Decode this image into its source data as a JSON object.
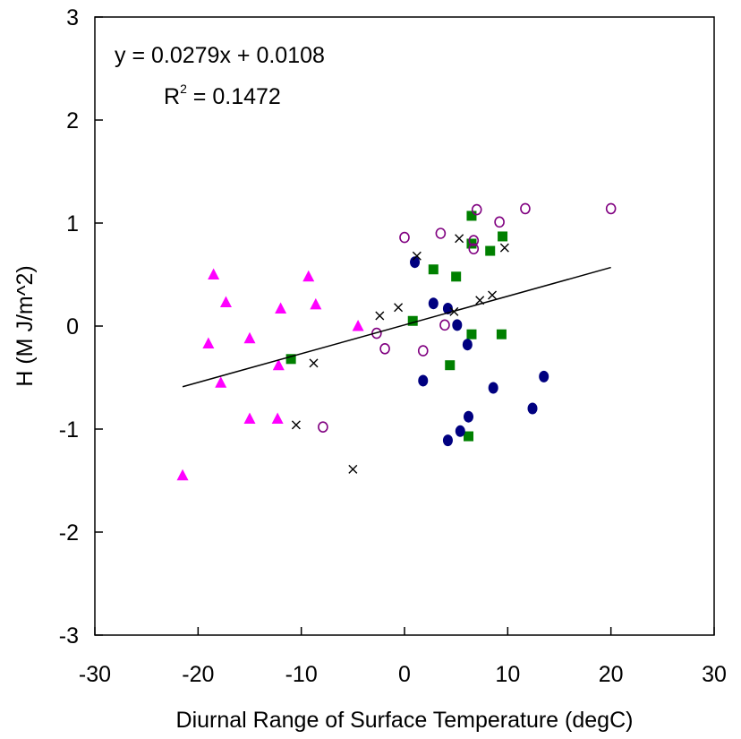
{
  "chart_data": {
    "type": "scatter",
    "title": "",
    "xlabel": "Diurnal Range of Surface Temperature (degC)",
    "ylabel": "H (M J/m^2)",
    "xlim": [
      -30,
      30
    ],
    "ylim": [
      -3,
      3
    ],
    "x_ticks": [
      -30,
      -20,
      -10,
      0,
      10,
      20,
      30
    ],
    "y_ticks": [
      -3,
      -2,
      -1,
      0,
      1,
      2,
      3
    ],
    "x_tick_labels": [
      "-30",
      "-20",
      "-10",
      "0",
      "10",
      "20",
      "30"
    ],
    "y_tick_labels": [
      "-3",
      "-2",
      "-1",
      "0",
      "1",
      "2",
      "3"
    ],
    "grid": false,
    "legend": false,
    "series": [
      {
        "marker": "triangle",
        "color": "#ff00ff",
        "points": [
          [
            -18.5,
            0.5
          ],
          [
            -9.3,
            0.48
          ],
          [
            -17.3,
            0.23
          ],
          [
            -8.6,
            0.21
          ],
          [
            -12.0,
            0.17
          ],
          [
            -19.0,
            -0.17
          ],
          [
            -15.0,
            -0.12
          ],
          [
            -12.2,
            -0.38
          ],
          [
            -4.5,
            0.0
          ],
          [
            -17.8,
            -0.55
          ],
          [
            -15.0,
            -0.9
          ],
          [
            -12.3,
            -0.9
          ],
          [
            -21.5,
            -1.45
          ]
        ]
      },
      {
        "marker": "square",
        "color": "#008000",
        "points": [
          [
            6.5,
            1.07
          ],
          [
            9.5,
            0.87
          ],
          [
            6.5,
            0.8
          ],
          [
            8.3,
            0.73
          ],
          [
            2.8,
            0.55
          ],
          [
            5.0,
            0.48
          ],
          [
            0.8,
            0.05
          ],
          [
            6.5,
            -0.08
          ],
          [
            9.4,
            -0.08
          ],
          [
            -11.0,
            -0.32
          ],
          [
            4.4,
            -0.38
          ],
          [
            6.2,
            -1.07
          ]
        ]
      },
      {
        "marker": "circle",
        "color": "#000080",
        "points": [
          [
            1.0,
            0.62
          ],
          [
            2.8,
            0.22
          ],
          [
            4.2,
            0.17
          ],
          [
            5.1,
            0.01
          ],
          [
            6.1,
            -0.18
          ],
          [
            1.8,
            -0.53
          ],
          [
            13.5,
            -0.49
          ],
          [
            8.6,
            -0.6
          ],
          [
            12.4,
            -0.8
          ],
          [
            6.2,
            -0.88
          ],
          [
            5.4,
            -1.02
          ],
          [
            4.2,
            -1.11
          ]
        ]
      },
      {
        "marker": "open-circle",
        "color": "#800080",
        "points": [
          [
            7.0,
            1.13
          ],
          [
            11.7,
            1.14
          ],
          [
            20.0,
            1.14
          ],
          [
            9.2,
            1.01
          ],
          [
            0.0,
            0.86
          ],
          [
            3.5,
            0.9
          ],
          [
            6.7,
            0.83
          ],
          [
            6.7,
            0.75
          ],
          [
            3.9,
            0.01
          ],
          [
            -2.7,
            -0.07
          ],
          [
            -1.9,
            -0.22
          ],
          [
            1.8,
            -0.24
          ],
          [
            -7.9,
            -0.98
          ]
        ]
      },
      {
        "marker": "x",
        "color": "#000000",
        "points": [
          [
            1.2,
            0.68
          ],
          [
            5.3,
            0.85
          ],
          [
            9.7,
            0.76
          ],
          [
            -0.6,
            0.18
          ],
          [
            -2.4,
            0.1
          ],
          [
            4.8,
            0.14
          ],
          [
            7.3,
            0.25
          ],
          [
            8.5,
            0.3
          ],
          [
            -8.8,
            -0.36
          ],
          [
            -10.5,
            -0.96
          ],
          [
            -5.0,
            -1.39
          ]
        ]
      }
    ],
    "trendline": {
      "slope": 0.0279,
      "intercept": 0.0108,
      "x_range": [
        -21.5,
        20.0
      ],
      "equation": "y = 0.0279x + 0.0108",
      "r2_base": "R",
      "r2_sup": "2",
      "r2_value": " = 0.1472"
    }
  }
}
